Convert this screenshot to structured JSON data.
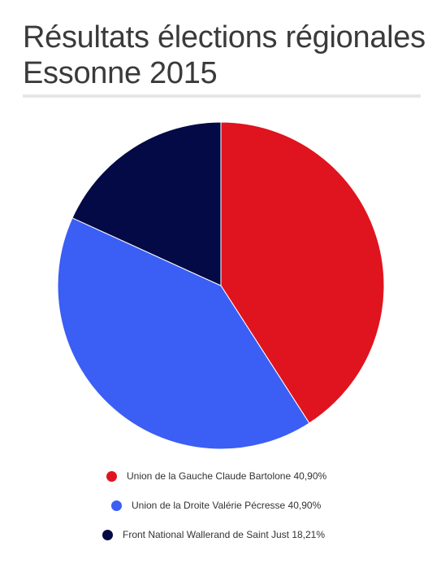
{
  "page": {
    "title": "Résultats élections régionales Essonne 2015"
  },
  "chart_data": {
    "type": "pie",
    "title": "Résultats élections régionales Essonne 2015",
    "legend_position": "bottom",
    "slices": [
      {
        "label": "Union de la Gauche Claude Bartolone 40,90%",
        "value": 40.9,
        "color": "#e0141e"
      },
      {
        "label": "Union de la Droite Valérie Pécresse 40,90%",
        "value": 40.9,
        "color": "#3b5ef5"
      },
      {
        "label": "Front National Wallerand de Saint Just 18,21%",
        "value": 18.21,
        "color": "#030a45"
      }
    ]
  }
}
